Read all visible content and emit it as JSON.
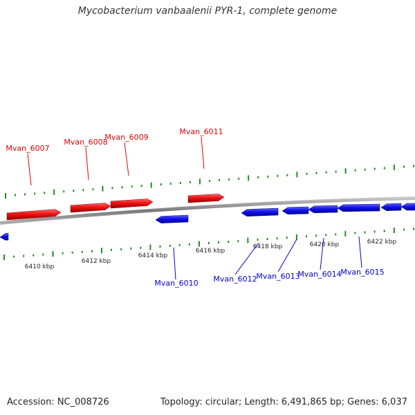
{
  "title": "Mycobacterium vanbaalenii PYR-1, complete genome",
  "footer": {
    "accession": "Accession: NC_008726",
    "summary": "Topology: circular; Length: 6,491,865 bp; Genes: 6,037"
  },
  "colors": {
    "forward": "#ee1111",
    "reverse": "#1111ee",
    "forward_label": "#dd0000",
    "reverse_label": "#0000cc",
    "backbone": "#8a8a8a",
    "tick": "#1f8a1f"
  },
  "scale": {
    "ticks_kbp": [
      "6410 kbp",
      "6412 kbp",
      "6414 kbp",
      "6416 kbp",
      "6418 kbp",
      "6420 kbp",
      "6422 kbp"
    ]
  },
  "genes_forward": [
    {
      "name": "Mvan_6007"
    },
    {
      "name": "Mvan_6008"
    },
    {
      "name": "Mvan_6009"
    },
    {
      "name": "Mvan_6011"
    }
  ],
  "genes_reverse": [
    {
      "name": "Mvan_6010"
    },
    {
      "name": "Mvan_6012"
    },
    {
      "name": "Mvan_6013"
    },
    {
      "name": "Mvan_6014"
    },
    {
      "name": "Mvan_6015"
    }
  ]
}
